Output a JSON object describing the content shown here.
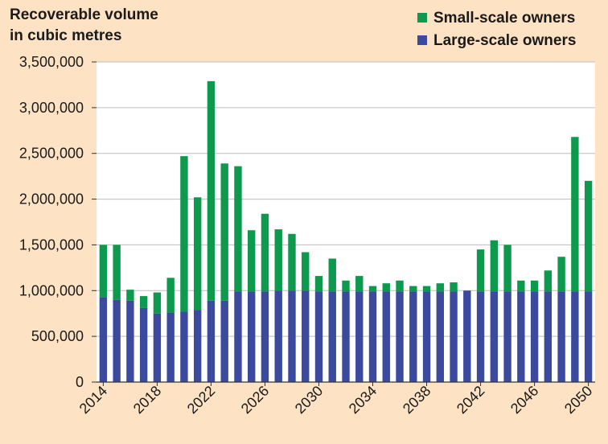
{
  "chart_data": {
    "type": "bar",
    "stacked": true,
    "title_lines": [
      "Recoverable volume",
      "in cubic metres"
    ],
    "x": [
      2014,
      2015,
      2016,
      2017,
      2018,
      2019,
      2020,
      2021,
      2022,
      2023,
      2024,
      2025,
      2026,
      2027,
      2028,
      2029,
      2030,
      2031,
      2032,
      2033,
      2034,
      2035,
      2036,
      2037,
      2038,
      2039,
      2040,
      2041,
      2042,
      2043,
      2044,
      2045,
      2046,
      2047,
      2048,
      2049,
      2050
    ],
    "x_tick_labels": [
      "2014",
      "2018",
      "2022",
      "2026",
      "2030",
      "2034",
      "2038",
      "2042",
      "2046",
      "2050"
    ],
    "ylim": [
      0,
      3500000
    ],
    "y_ticks": [
      0,
      500000,
      1000000,
      1500000,
      2000000,
      2500000,
      3000000,
      3500000
    ],
    "y_tick_labels": [
      "0",
      "500,000",
      "1,000,000",
      "1,500,000",
      "2,000,000",
      "2,500,000",
      "3,000,000",
      "3,500,000"
    ],
    "legend_position": "top-right",
    "grid": "horizontal",
    "series": [
      {
        "name": "Small-scale owners",
        "color": "#0e9a4e",
        "values": [
          570000,
          600000,
          120000,
          130000,
          230000,
          380000,
          1700000,
          1230000,
          2400000,
          1500000,
          1370000,
          670000,
          850000,
          670000,
          620000,
          420000,
          170000,
          360000,
          120000,
          170000,
          60000,
          90000,
          120000,
          60000,
          60000,
          90000,
          100000,
          0,
          460000,
          560000,
          510000,
          120000,
          120000,
          230000,
          380000,
          1690000,
          1210000
        ]
      },
      {
        "name": "Large-scale owners",
        "color": "#3b4a9c",
        "values": [
          930000,
          900000,
          890000,
          810000,
          750000,
          760000,
          770000,
          790000,
          890000,
          890000,
          990000,
          990000,
          990000,
          1000000,
          1000000,
          1000000,
          990000,
          990000,
          990000,
          990000,
          990000,
          990000,
          990000,
          990000,
          990000,
          990000,
          990000,
          1000000,
          990000,
          990000,
          990000,
          990000,
          990000,
          990000,
          990000,
          990000,
          990000
        ]
      }
    ]
  }
}
